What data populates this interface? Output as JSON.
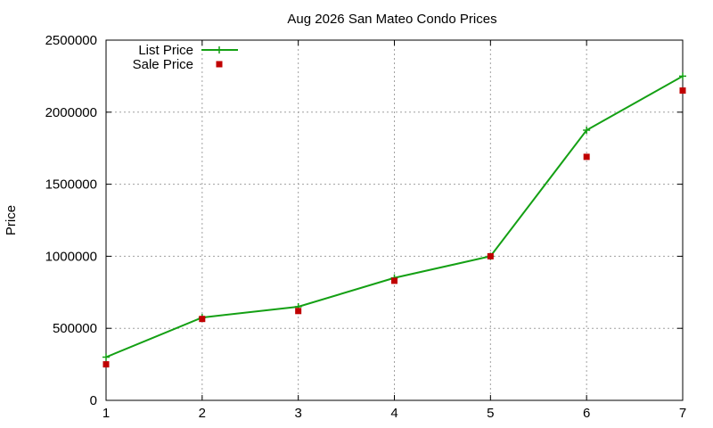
{
  "chart_data": {
    "type": "line",
    "title": "Aug 2026 San Mateo Condo Prices",
    "xlabel": "",
    "ylabel": "Price",
    "x": [
      1,
      2,
      3,
      4,
      5,
      6,
      7
    ],
    "xlim": [
      1,
      7
    ],
    "ylim": [
      0,
      2500000
    ],
    "xticks": [
      "1",
      "2",
      "3",
      "4",
      "5",
      "6",
      "7"
    ],
    "yticks": [
      "0",
      "500000",
      "1000000",
      "1500000",
      "2000000",
      "2500000"
    ],
    "grid": true,
    "legend_position": "top-left",
    "series": [
      {
        "name": "List Price",
        "style": "linespoints",
        "marker": "plus",
        "color": "#14a014",
        "values": [
          300000,
          575000,
          650000,
          850000,
          1000000,
          1875000,
          2250000
        ]
      },
      {
        "name": "Sale Price",
        "style": "points",
        "marker": "square",
        "color": "#c00000",
        "values": [
          250000,
          565000,
          620000,
          830000,
          1000000,
          1690000,
          2150000
        ]
      }
    ]
  }
}
